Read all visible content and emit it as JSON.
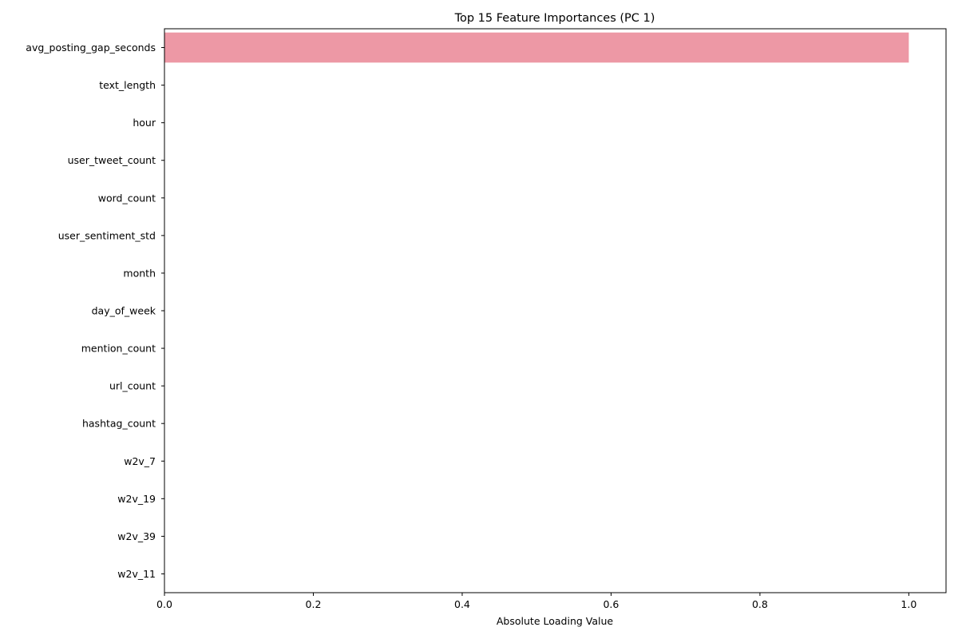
{
  "chart_data": {
    "type": "bar",
    "orientation": "horizontal",
    "title": "Top 15 Feature Importances (PC 1)",
    "xlabel": "Absolute Loading Value",
    "ylabel": "",
    "xlim": [
      0,
      1.05
    ],
    "xticks": [
      0.0,
      0.2,
      0.4,
      0.6,
      0.8,
      1.0
    ],
    "xtick_labels": [
      "0.0",
      "0.2",
      "0.4",
      "0.6",
      "0.8",
      "1.0"
    ],
    "grid": false,
    "bar_color": "#ED98A5",
    "categories": [
      "avg_posting_gap_seconds",
      "text_length",
      "hour",
      "user_tweet_count",
      "word_count",
      "user_sentiment_std",
      "month",
      "day_of_week",
      "mention_count",
      "url_count",
      "hashtag_count",
      "w2v_7",
      "w2v_19",
      "w2v_39",
      "w2v_11"
    ],
    "values": [
      1.0,
      0.0,
      0.0,
      0.0,
      0.0,
      0.0,
      0.0,
      0.0,
      0.0,
      0.0,
      0.0,
      0.0,
      0.0,
      0.0,
      0.0
    ]
  }
}
